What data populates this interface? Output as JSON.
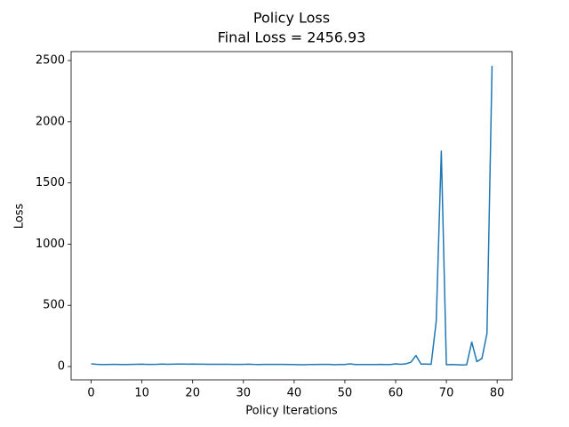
{
  "chart_data": {
    "type": "line",
    "title": "Policy Loss",
    "subtitle": "Final Loss = 2456.93",
    "x_label": "Policy Iterations",
    "y_label": "Loss",
    "color": "#1f77b4",
    "x": [
      0,
      1,
      2,
      3,
      4,
      5,
      6,
      7,
      8,
      9,
      10,
      11,
      12,
      13,
      14,
      15,
      16,
      17,
      18,
      19,
      20,
      21,
      22,
      23,
      24,
      25,
      26,
      27,
      28,
      29,
      30,
      31,
      32,
      33,
      34,
      35,
      36,
      37,
      38,
      39,
      40,
      41,
      42,
      43,
      44,
      45,
      46,
      47,
      48,
      49,
      50,
      51,
      52,
      53,
      54,
      55,
      56,
      57,
      58,
      59,
      60,
      61,
      62,
      63,
      64,
      65,
      66,
      67,
      68,
      69,
      70,
      71,
      72,
      73,
      74,
      75,
      76,
      77,
      78,
      79
    ],
    "values": [
      22,
      18,
      16,
      16,
      17,
      17,
      16,
      16,
      17,
      18,
      19,
      17,
      17,
      18,
      20,
      18,
      19,
      20,
      20,
      19,
      20,
      19,
      19,
      18,
      18,
      18,
      18,
      18,
      17,
      17,
      17,
      19,
      17,
      16,
      17,
      17,
      17,
      17,
      17,
      16,
      16,
      15,
      15,
      16,
      16,
      17,
      17,
      17,
      15,
      16,
      16,
      22,
      16,
      16,
      16,
      16,
      16,
      17,
      16,
      16,
      22,
      18,
      22,
      35,
      90,
      20,
      20,
      18,
      370,
      1760,
      15,
      16,
      15,
      13,
      15,
      200,
      40,
      65,
      270,
      2456.93
    ],
    "xlim": [
      -3.95,
      82.95
    ],
    "ylim": [
      -109,
      2573
    ],
    "xticks": [
      0,
      10,
      20,
      30,
      40,
      50,
      60,
      70,
      80
    ],
    "yticks": [
      0,
      500,
      1000,
      1500,
      2000,
      2500
    ]
  }
}
